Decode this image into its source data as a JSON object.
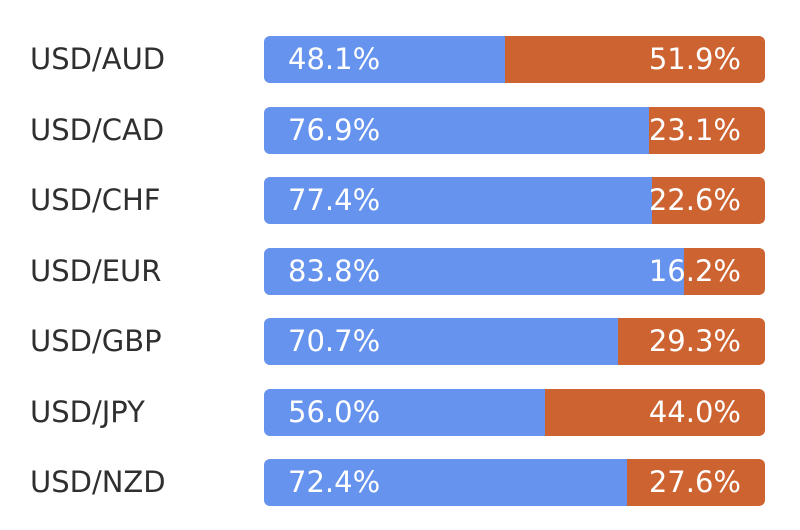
{
  "colors": {
    "left_segment": "#6593EE",
    "right_segment": "#CC6331",
    "label_text": "#2f2f2f",
    "value_text": "#ffffff"
  },
  "chart_data": {
    "type": "bar",
    "orientation": "horizontal",
    "stacked": true,
    "unit": "%",
    "categories": [
      "USD/AUD",
      "USD/CAD",
      "USD/CHF",
      "USD/EUR",
      "USD/GBP",
      "USD/JPY",
      "USD/NZD"
    ],
    "series": [
      {
        "color": "#6593EE",
        "values": [
          48.1,
          76.9,
          77.4,
          83.8,
          70.7,
          56.0,
          72.4
        ],
        "labels": [
          "48.1%",
          "76.9%",
          "77.4%",
          "83.8%",
          "70.7%",
          "56.0%",
          "72.4%"
        ]
      },
      {
        "color": "#CC6331",
        "values": [
          51.9,
          23.1,
          22.6,
          16.2,
          29.3,
          44.0,
          27.6
        ],
        "labels": [
          "51.9%",
          "23.1%",
          "22.6%",
          "16.2%",
          "29.3%",
          "44.0%",
          "27.6%"
        ]
      }
    ],
    "xlim": [
      0,
      100
    ]
  }
}
